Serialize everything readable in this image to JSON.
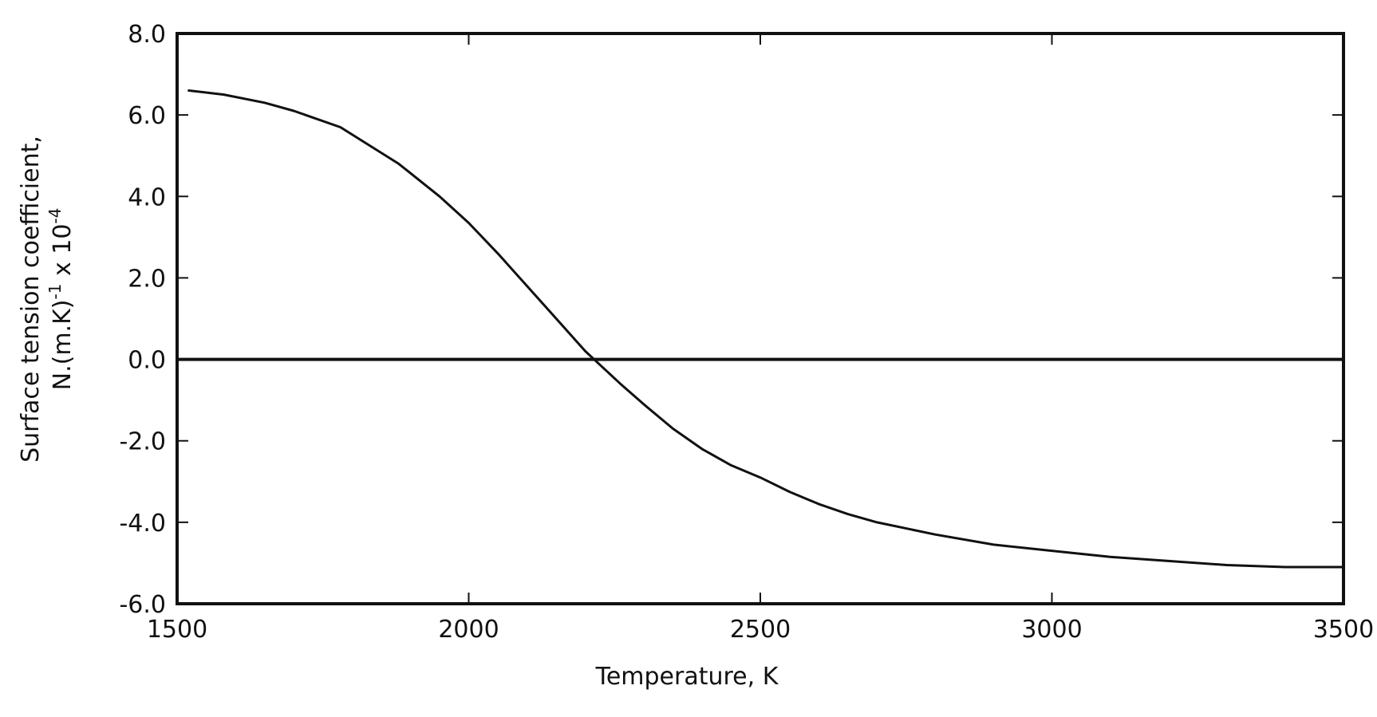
{
  "chart_data": {
    "type": "line",
    "title": "",
    "xlabel": "Temperature, K",
    "ylabel": {
      "line1": "Surface tension coefficient,",
      "line2_base": "N.(m.K)",
      "line2_exp1": "-1",
      "line2_mid": " x 10",
      "line2_exp2": "-4"
    },
    "xlim": [
      1500,
      3500
    ],
    "ylim": [
      -6.0,
      8.0
    ],
    "xticks": [
      1500,
      2000,
      2500,
      3000,
      3500
    ],
    "xtick_labels": [
      "1500",
      "2000",
      "2500",
      "3000",
      "3500"
    ],
    "yticks": [
      8.0,
      6.0,
      4.0,
      2.0,
      0.0,
      -2.0,
      -4.0,
      -6.0
    ],
    "ytick_labels": [
      "8.0",
      "6.0",
      "4.0",
      "2.0",
      "0.0",
      "-2.0",
      "-4.0",
      "-6.0"
    ],
    "grid": false,
    "reference_line_y": 0.0,
    "series": [
      {
        "x": [
          1520,
          1580,
          1650,
          1700,
          1780,
          1880,
          1950,
          2000,
          2050,
          2100,
          2150,
          2200,
          2260,
          2300,
          2350,
          2400,
          2450,
          2500,
          2550,
          2600,
          2650,
          2700,
          2800,
          2900,
          3000,
          3100,
          3200,
          3300,
          3400,
          3500
        ],
        "y": [
          6.6,
          6.5,
          6.3,
          6.1,
          5.7,
          4.8,
          4.0,
          3.35,
          2.6,
          1.8,
          1.0,
          0.2,
          -0.6,
          -1.1,
          -1.7,
          -2.2,
          -2.6,
          -2.9,
          -3.25,
          -3.55,
          -3.8,
          -4.0,
          -4.3,
          -4.55,
          -4.7,
          -4.85,
          -4.95,
          -5.05,
          -5.1,
          -5.1
        ]
      }
    ],
    "line_color": "#111111"
  }
}
